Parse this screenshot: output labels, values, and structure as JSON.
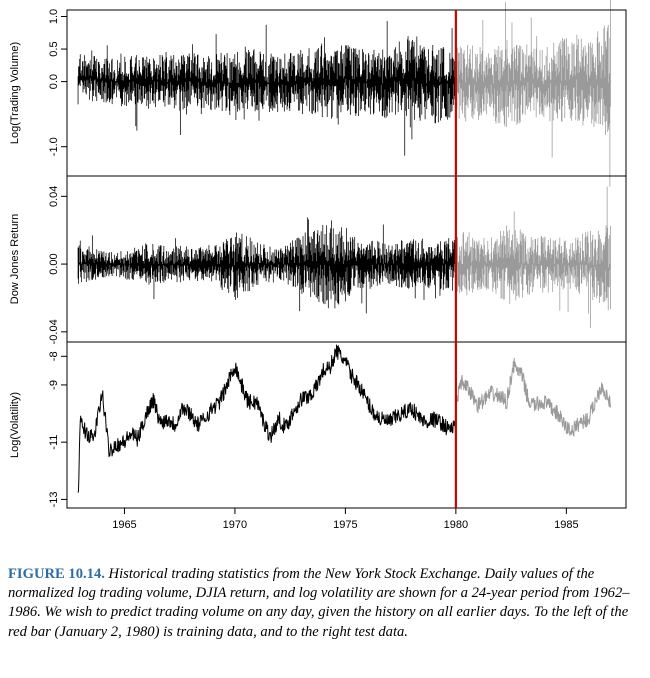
{
  "caption": {
    "label": "FIGURE 10.14.",
    "text": "Historical trading statistics from the New York Stock Exchange. Daily values of the normalized log trading volume, DJIA return, and log volatility are shown for a 24-year period from 1962–1986. We wish to predict trading volume on any day, given the history on all earlier days. To the left of the red bar (January 2, 1980) is training data, and to the right test data."
  },
  "colors": {
    "train": "#000000",
    "test": "#9a9a9a",
    "split": "#cc0000",
    "axis": "#000000"
  },
  "chart_data": {
    "type": "line",
    "xlim": [
      1962.4,
      1987.7
    ],
    "x_ticks": [
      1965,
      1970,
      1975,
      1980,
      1985
    ],
    "split_year": 1980.0,
    "panels": [
      {
        "ylabel": "Log(Trading Volume)",
        "ylim": [
          -1.45,
          1.1
        ],
        "y_ticks": [
          -1.0,
          0.0,
          0.5,
          1.0
        ],
        "y_tick_labels": [
          "-1.0",
          "0.0",
          "0.5",
          "1.0"
        ],
        "series": [
          {
            "role": "train",
            "x": [
              1962.9,
              1963.5,
              1964.0,
              1964.5,
              1965.0,
              1965.5,
              1966.0,
              1966.5,
              1967.0,
              1967.5,
              1968.0,
              1968.5,
              1969.0,
              1969.5,
              1970.0,
              1970.5,
              1971.0,
              1971.5,
              1972.0,
              1972.5,
              1973.0,
              1973.5,
              1974.0,
              1974.5,
              1975.0,
              1975.5,
              1976.0,
              1976.5,
              1977.0,
              1977.5,
              1978.0,
              1978.5,
              1979.0,
              1979.5,
              1980.0
            ],
            "upper": [
              0.45,
              0.4,
              0.38,
              0.35,
              0.4,
              0.42,
              0.48,
              0.45,
              0.4,
              0.42,
              0.45,
              0.4,
              0.42,
              0.45,
              0.5,
              0.55,
              0.48,
              0.45,
              0.42,
              0.45,
              0.55,
              0.5,
              0.6,
              0.55,
              0.6,
              0.55,
              0.5,
              0.48,
              0.55,
              0.65,
              0.75,
              0.55,
              0.6,
              0.55,
              0.55
            ],
            "lower": [
              -0.35,
              -0.3,
              -0.32,
              -0.35,
              -0.4,
              -0.38,
              -0.45,
              -0.4,
              -0.42,
              -0.45,
              -0.4,
              -0.42,
              -0.5,
              -0.45,
              -0.6,
              -0.5,
              -0.45,
              -0.5,
              -0.48,
              -0.45,
              -0.55,
              -0.5,
              -0.55,
              -0.6,
              -0.5,
              -0.55,
              -0.5,
              -0.55,
              -0.6,
              -0.55,
              -0.7,
              -0.6,
              -0.65,
              -0.6,
              -0.55
            ]
          },
          {
            "role": "test",
            "x": [
              1980.0,
              1980.5,
              1981.0,
              1981.5,
              1982.0,
              1982.5,
              1983.0,
              1983.5,
              1984.0,
              1984.5,
              1985.0,
              1985.5,
              1986.0,
              1986.5,
              1987.0
            ],
            "upper": [
              0.55,
              0.6,
              0.55,
              0.5,
              0.6,
              0.7,
              0.6,
              0.55,
              0.5,
              0.65,
              0.7,
              0.75,
              0.65,
              0.8,
              0.9
            ],
            "lower": [
              -0.55,
              -0.65,
              -0.6,
              -0.55,
              -0.7,
              -0.75,
              -0.6,
              -0.55,
              -0.6,
              -0.65,
              -0.7,
              -0.65,
              -0.7,
              -0.8,
              -1.0
            ]
          }
        ]
      },
      {
        "ylabel": "Dow Jones Return",
        "ylim": [
          -0.046,
          0.052
        ],
        "y_ticks": [
          -0.04,
          0.0,
          0.04
        ],
        "y_tick_labels": [
          "-0.04",
          "0.00",
          "0.04"
        ],
        "series": [
          {
            "role": "train",
            "x": [
              1962.9,
              1963.5,
              1964.0,
              1964.5,
              1965.0,
              1965.5,
              1966.0,
              1966.5,
              1967.0,
              1967.5,
              1968.0,
              1968.5,
              1969.0,
              1969.5,
              1970.0,
              1970.5,
              1971.0,
              1971.5,
              1972.0,
              1972.5,
              1973.0,
              1973.5,
              1974.0,
              1974.5,
              1975.0,
              1975.5,
              1976.0,
              1976.5,
              1977.0,
              1977.5,
              1978.0,
              1978.5,
              1979.0,
              1979.5,
              1980.0
            ],
            "upper": [
              0.015,
              0.01,
              0.008,
              0.007,
              0.009,
              0.01,
              0.013,
              0.012,
              0.01,
              0.011,
              0.01,
              0.01,
              0.012,
              0.014,
              0.02,
              0.018,
              0.013,
              0.012,
              0.011,
              0.013,
              0.018,
              0.02,
              0.025,
              0.028,
              0.022,
              0.018,
              0.015,
              0.014,
              0.012,
              0.014,
              0.016,
              0.015,
              0.014,
              0.016,
              0.016
            ],
            "lower": [
              -0.015,
              -0.01,
              -0.008,
              -0.007,
              -0.009,
              -0.01,
              -0.013,
              -0.012,
              -0.01,
              -0.011,
              -0.01,
              -0.01,
              -0.012,
              -0.014,
              -0.022,
              -0.018,
              -0.013,
              -0.012,
              -0.011,
              -0.013,
              -0.018,
              -0.02,
              -0.026,
              -0.028,
              -0.022,
              -0.018,
              -0.015,
              -0.014,
              -0.012,
              -0.014,
              -0.016,
              -0.015,
              -0.014,
              -0.016,
              -0.016
            ]
          },
          {
            "role": "test",
            "x": [
              1980.0,
              1980.5,
              1981.0,
              1981.5,
              1982.0,
              1982.5,
              1983.0,
              1983.5,
              1984.0,
              1984.5,
              1985.0,
              1985.5,
              1986.0,
              1986.5,
              1987.0
            ],
            "upper": [
              0.018,
              0.02,
              0.016,
              0.015,
              0.02,
              0.025,
              0.02,
              0.017,
              0.018,
              0.016,
              0.015,
              0.017,
              0.02,
              0.022,
              0.025
            ],
            "lower": [
              -0.018,
              -0.02,
              -0.016,
              -0.015,
              -0.02,
              -0.025,
              -0.02,
              -0.017,
              -0.018,
              -0.016,
              -0.015,
              -0.017,
              -0.02,
              -0.025,
              -0.03
            ]
          }
        ]
      },
      {
        "ylabel": "Log(Volatility)",
        "ylim": [
          -13.3,
          -7.5
        ],
        "y_ticks": [
          -13,
          -11,
          -9,
          -8
        ],
        "y_tick_labels": [
          "-13",
          "-11",
          "-9",
          "-8"
        ],
        "series": [
          {
            "role": "train",
            "x": [
              1962.9,
              1963.0,
              1963.3,
              1963.6,
              1964.0,
              1964.3,
              1964.6,
              1965.0,
              1965.3,
              1965.6,
              1966.0,
              1966.3,
              1966.6,
              1967.0,
              1967.3,
              1967.6,
              1968.0,
              1968.3,
              1968.6,
              1969.0,
              1969.3,
              1969.6,
              1970.0,
              1970.3,
              1970.6,
              1971.0,
              1971.3,
              1971.6,
              1972.0,
              1972.3,
              1972.6,
              1973.0,
              1973.3,
              1973.6,
              1974.0,
              1974.3,
              1974.6,
              1975.0,
              1975.3,
              1975.6,
              1976.0,
              1976.3,
              1976.6,
              1977.0,
              1977.3,
              1977.6,
              1978.0,
              1978.3,
              1978.6,
              1979.0,
              1979.3,
              1979.6,
              1980.0
            ],
            "y": [
              -13.0,
              -10.3,
              -10.7,
              -10.9,
              -9.3,
              -11.3,
              -11.1,
              -11.0,
              -10.7,
              -10.9,
              -10.0,
              -9.5,
              -10.3,
              -10.2,
              -10.4,
              -9.8,
              -10.0,
              -10.4,
              -10.2,
              -9.8,
              -9.6,
              -9.1,
              -8.3,
              -9.0,
              -9.6,
              -9.6,
              -10.3,
              -10.8,
              -10.2,
              -10.5,
              -10.0,
              -9.5,
              -9.4,
              -9.2,
              -8.5,
              -8.4,
              -7.8,
              -8.2,
              -8.7,
              -9.0,
              -9.6,
              -10.0,
              -10.2,
              -10.3,
              -10.1,
              -10.0,
              -9.8,
              -10.1,
              -10.3,
              -10.2,
              -10.3,
              -10.5,
              -10.5
            ]
          },
          {
            "role": "test",
            "x": [
              1980.0,
              1980.3,
              1980.6,
              1981.0,
              1981.3,
              1981.6,
              1982.0,
              1982.3,
              1982.6,
              1983.0,
              1983.3,
              1983.6,
              1984.0,
              1984.3,
              1984.6,
              1985.0,
              1985.3,
              1985.6,
              1986.0,
              1986.3,
              1986.6,
              1987.0
            ],
            "y": [
              -9.5,
              -8.9,
              -9.2,
              -9.7,
              -9.5,
              -9.3,
              -9.4,
              -9.6,
              -8.3,
              -8.7,
              -9.6,
              -9.7,
              -9.6,
              -9.8,
              -10.0,
              -10.5,
              -10.6,
              -10.3,
              -10.2,
              -9.6,
              -9.0,
              -9.7
            ]
          }
        ]
      }
    ]
  }
}
